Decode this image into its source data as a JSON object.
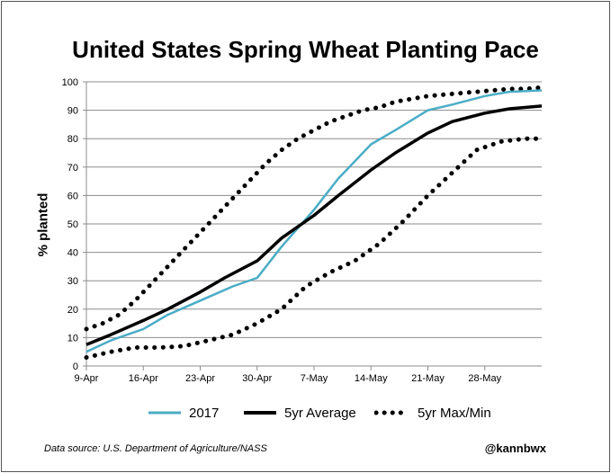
{
  "chart_data": {
    "type": "line",
    "title": "United States Spring Wheat Planting Pace",
    "xlabel": "",
    "ylabel": "% planted",
    "ylim": [
      0,
      100
    ],
    "yticks": [
      0,
      10,
      20,
      30,
      40,
      50,
      60,
      70,
      80,
      90,
      100
    ],
    "x_unit": "days since 9-Apr",
    "xlim": [
      0,
      56
    ],
    "xticks": [
      {
        "day": 0,
        "label": "9-Apr"
      },
      {
        "day": 7,
        "label": "16-Apr"
      },
      {
        "day": 14,
        "label": "23-Apr"
      },
      {
        "day": 21,
        "label": "30-Apr"
      },
      {
        "day": 28,
        "label": "7-May"
      },
      {
        "day": 35,
        "label": "14-May"
      },
      {
        "day": 42,
        "label": "21-May"
      },
      {
        "day": 49,
        "label": "28-May"
      }
    ],
    "grid": "horizontal",
    "series": [
      {
        "name": "5yr Max",
        "style": "dotted",
        "color": "#000000",
        "legend_label": "5yr Max/Min",
        "x": [
          0,
          2,
          4,
          6,
          8,
          10,
          12,
          14,
          16,
          18,
          20,
          22,
          24,
          26,
          28,
          30,
          32,
          34,
          36,
          38,
          40,
          42,
          44,
          46,
          48,
          50,
          52,
          54,
          56
        ],
        "y": [
          13,
          15,
          18,
          23,
          29,
          35,
          41,
          47,
          53,
          59,
          65,
          71,
          76,
          80,
          83,
          86,
          88,
          90,
          91,
          93,
          94,
          95,
          95.5,
          96,
          96.5,
          97,
          97.5,
          97.5,
          98
        ]
      },
      {
        "name": "2017",
        "style": "solid",
        "color": "#4bacc6",
        "x": [
          0,
          3,
          7,
          10,
          14,
          18,
          21,
          24,
          28,
          31,
          35,
          38,
          42,
          45,
          49,
          52,
          56
        ],
        "y": [
          5,
          9,
          13,
          18,
          23,
          28,
          31,
          42,
          55,
          66,
          78,
          83,
          90,
          92,
          95,
          96.5,
          97
        ]
      },
      {
        "name": "5yr Average",
        "style": "solid",
        "color": "#000000",
        "x": [
          0,
          3,
          7,
          10,
          14,
          17,
          21,
          24,
          28,
          31,
          35,
          38,
          42,
          45,
          49,
          52,
          56
        ],
        "y": [
          7.5,
          11,
          16,
          20,
          26,
          31,
          37,
          45,
          53,
          60,
          69,
          75,
          82,
          86,
          89,
          90.5,
          91.5
        ]
      },
      {
        "name": "5yr Min",
        "style": "dotted",
        "color": "#000000",
        "x": [
          0,
          3,
          6,
          9,
          12,
          15,
          18,
          21,
          24,
          27,
          30,
          33,
          36,
          39,
          42,
          45,
          48,
          51,
          54,
          56
        ],
        "y": [
          3,
          5,
          6.5,
          6.5,
          7,
          9,
          11,
          15,
          20,
          28,
          33,
          37,
          43,
          51,
          60,
          68,
          76,
          79,
          80,
          80
        ]
      }
    ]
  },
  "legend": {
    "items": [
      {
        "label": "2017",
        "color": "#4bacc6",
        "style": "solid"
      },
      {
        "label": "5yr Average",
        "color": "#000000",
        "style": "solid"
      },
      {
        "label": "5yr Max/Min",
        "color": "#000000",
        "style": "dotted"
      }
    ]
  },
  "footer": {
    "source": "Data source: U.S. Department of Agriculture/NASS",
    "handle": "@kannbwx"
  }
}
